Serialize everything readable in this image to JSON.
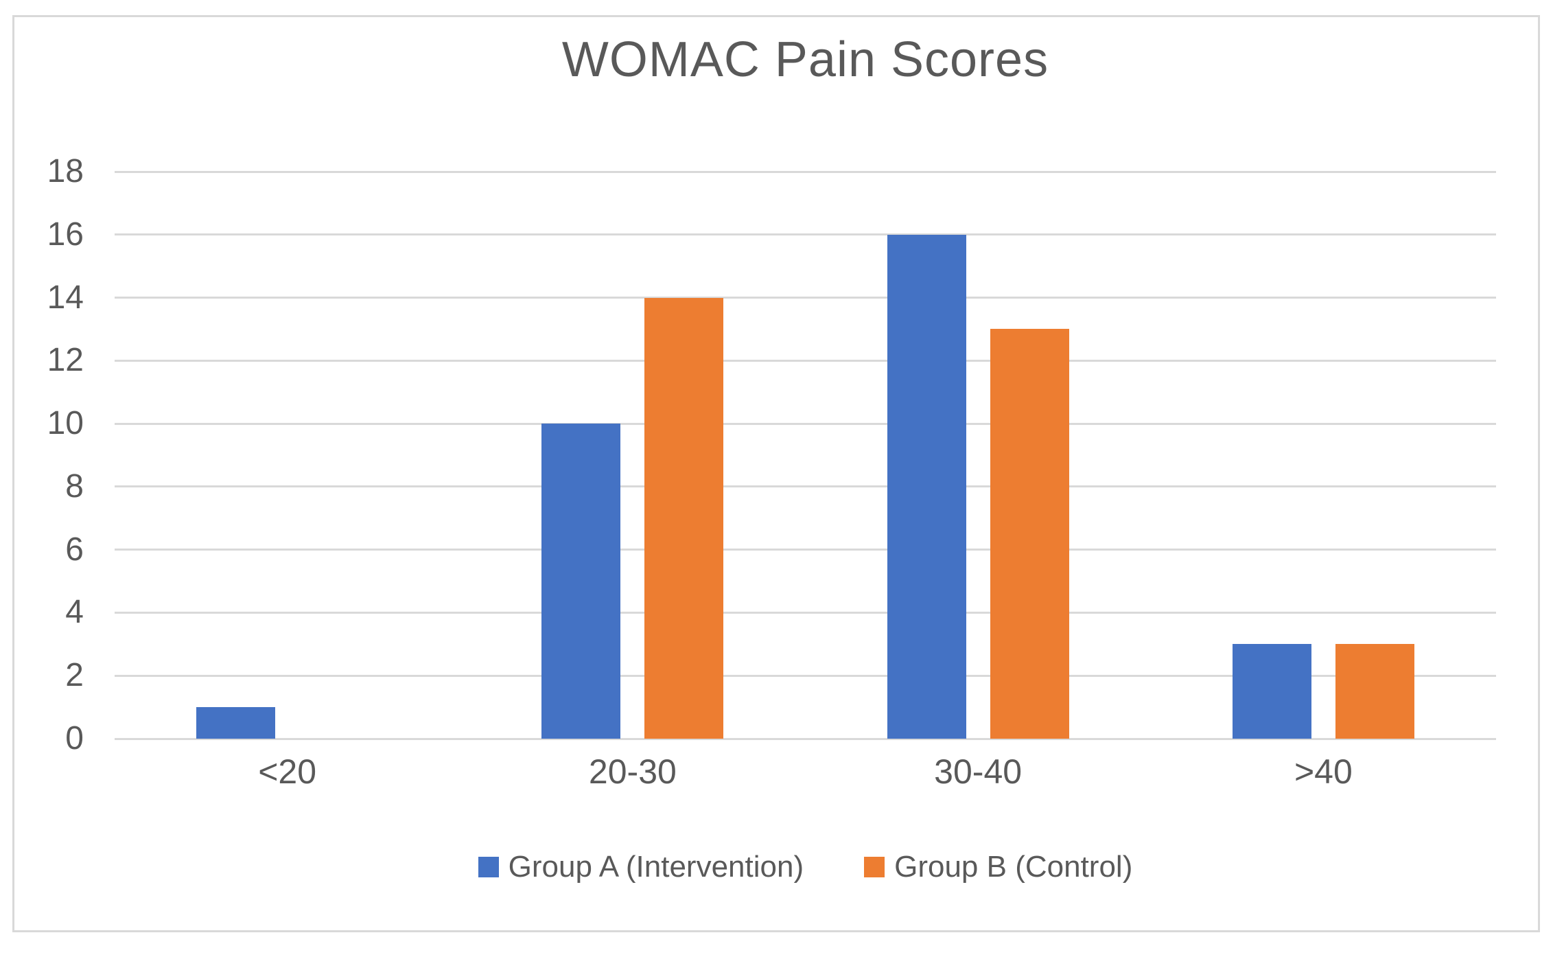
{
  "chart_data": {
    "type": "bar",
    "title": "WOMAC Pain Scores",
    "categories": [
      "<20",
      "20-30",
      "30-40",
      ">40"
    ],
    "series": [
      {
        "name": "Group A (Intervention)",
        "color": "#4472C4",
        "values": [
          1,
          10,
          16,
          3
        ]
      },
      {
        "name": "Group B (Control)",
        "color": "#ED7D31",
        "values": [
          0,
          14,
          13,
          3
        ]
      }
    ],
    "xlabel": "",
    "ylabel": "",
    "ylim": [
      0,
      18
    ],
    "yticks": [
      0,
      2,
      4,
      6,
      8,
      10,
      12,
      14,
      16,
      18
    ],
    "grid": true,
    "legend_position": "bottom"
  },
  "colors": {
    "text": "#595959",
    "gridline": "#D9D9D9",
    "frame_border": "#D9D9D9",
    "background": "#FFFFFF"
  }
}
